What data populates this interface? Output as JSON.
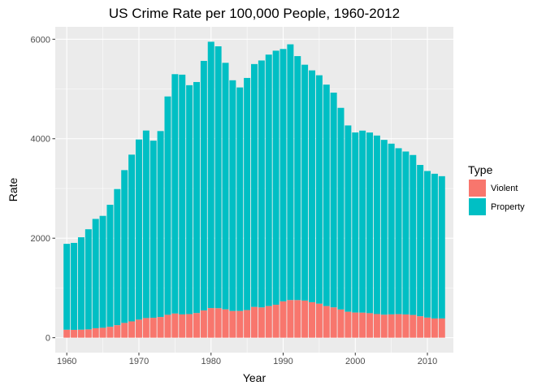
{
  "chart_data": {
    "type": "bar",
    "stacked": true,
    "title": "US Crime Rate per 100,000 People, 1960-2012",
    "xlabel": "Year",
    "ylabel": "Rate",
    "xlim": [
      1958.4,
      2013.6
    ],
    "ylim": [
      -300,
      6250
    ],
    "x_ticks": [
      1960,
      1970,
      1980,
      1990,
      2000,
      2010
    ],
    "y_ticks": [
      0,
      2000,
      4000,
      6000
    ],
    "grid": true,
    "legend": {
      "title": "Type",
      "position": "right",
      "entries": [
        {
          "label": "Violent",
          "color": "#F8766D"
        },
        {
          "label": "Property",
          "color": "#00BFC4"
        }
      ]
    },
    "x": [
      1960,
      1961,
      1962,
      1963,
      1964,
      1965,
      1966,
      1967,
      1968,
      1969,
      1970,
      1971,
      1972,
      1973,
      1974,
      1975,
      1976,
      1977,
      1978,
      1979,
      1980,
      1981,
      1982,
      1983,
      1984,
      1985,
      1986,
      1987,
      1988,
      1989,
      1990,
      1991,
      1992,
      1993,
      1994,
      1995,
      1996,
      1997,
      1998,
      1999,
      2000,
      2001,
      2002,
      2003,
      2004,
      2005,
      2006,
      2007,
      2008,
      2009,
      2010,
      2011,
      2012
    ],
    "series": [
      {
        "name": "Violent",
        "color": "#F8766D",
        "values": [
          161,
          158,
          162,
          168,
          191,
          200,
          220,
          253,
          298,
          329,
          364,
          396,
          401,
          417,
          461,
          487,
          468,
          475,
          497,
          548,
          597,
          594,
          571,
          538,
          539,
          556,
          620,
          610,
          637,
          663,
          731,
          758,
          757,
          747,
          714,
          685,
          637,
          611,
          568,
          523,
          507,
          505,
          494,
          476,
          463,
          469,
          474,
          467,
          458,
          432,
          405,
          387,
          387
        ]
      },
      {
        "name": "Property",
        "color": "#00BFC4",
        "values": [
          1726,
          1748,
          1857,
          2012,
          2197,
          2249,
          2452,
          2736,
          3071,
          3351,
          3621,
          3769,
          3560,
          3737,
          4389,
          4811,
          4820,
          4601,
          4643,
          5017,
          5353,
          5264,
          4955,
          4637,
          4492,
          4666,
          4881,
          4963,
          5054,
          5107,
          5073,
          5140,
          4904,
          4741,
          4660,
          4591,
          4451,
          4316,
          4053,
          3744,
          3619,
          3658,
          3631,
          3588,
          3514,
          3432,
          3335,
          3276,
          3215,
          3041,
          2946,
          2909,
          2860
        ]
      }
    ]
  }
}
